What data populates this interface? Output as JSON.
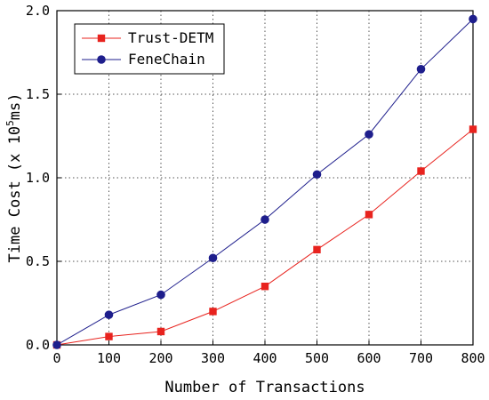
{
  "chart_data": {
    "type": "line",
    "title": "",
    "xlabel": "Number of Transactions",
    "ylabel": {
      "prefix": "Time Cost (x 10",
      "superscript": "5",
      "suffix": "ms)"
    },
    "x": [
      0,
      100,
      200,
      300,
      400,
      500,
      600,
      700,
      800
    ],
    "x_ticks": [
      "0",
      "100",
      "200",
      "300",
      "400",
      "500",
      "600",
      "700",
      "800"
    ],
    "y_ticks": [
      "0.0",
      "0.5",
      "1.0",
      "1.5",
      "2.0"
    ],
    "xlim": [
      0,
      800
    ],
    "ylim": [
      0,
      2.0
    ],
    "grid": true,
    "legend_position": "top-left",
    "series": [
      {
        "name": "Trust-DETM",
        "color": "#e8231e",
        "marker": "square",
        "values": [
          0,
          0.05,
          0.08,
          0.2,
          0.35,
          0.57,
          0.78,
          1.04,
          1.29
        ]
      },
      {
        "name": "FeneChain",
        "color": "#1e1e8c",
        "marker": "circle",
        "values": [
          0,
          0.18,
          0.3,
          0.52,
          0.75,
          1.02,
          1.26,
          1.65,
          1.95
        ]
      }
    ]
  }
}
